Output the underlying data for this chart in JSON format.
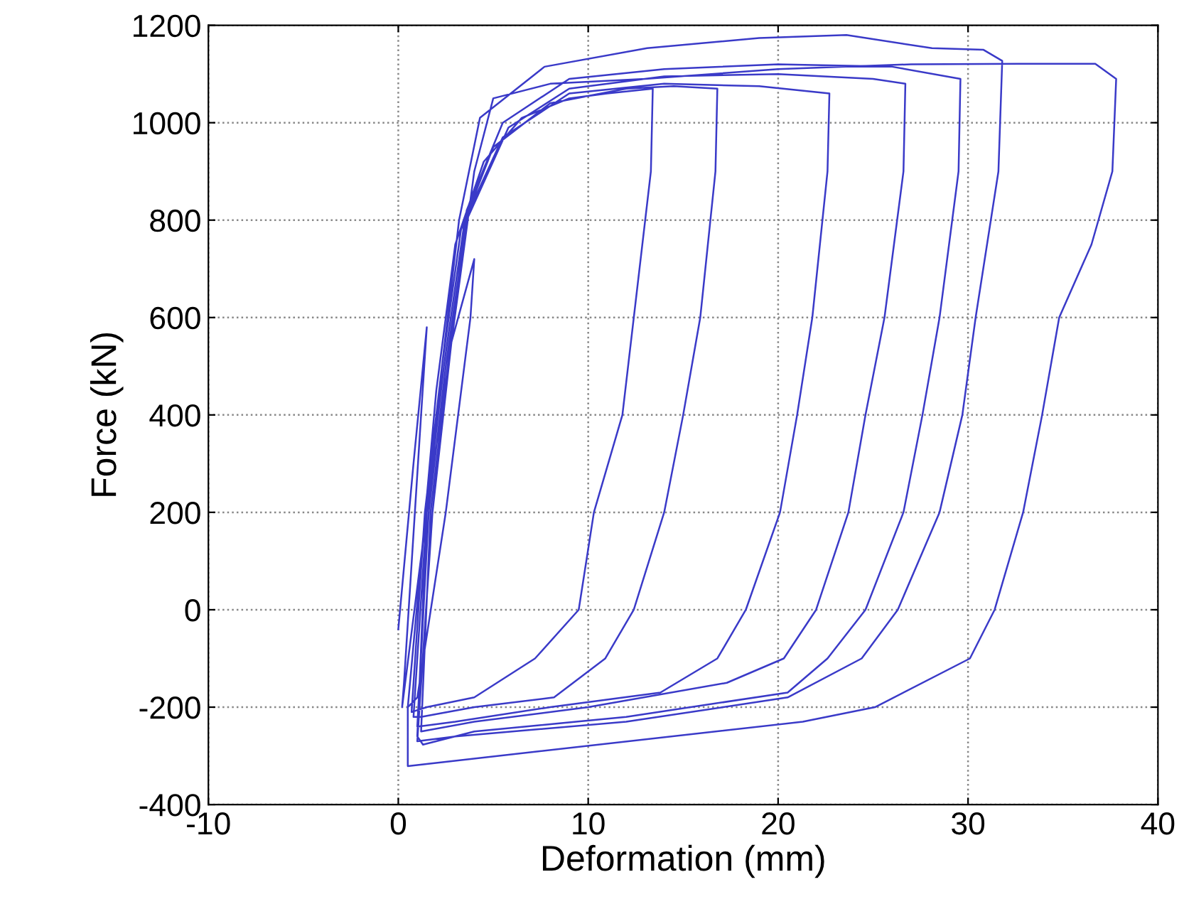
{
  "chart_data": {
    "type": "line",
    "xlabel": "Deformation (mm)",
    "ylabel": "Force (kN)",
    "xlim": [
      -10,
      40
    ],
    "xticks": [
      -10,
      0,
      10,
      20,
      30,
      40
    ],
    "ylim": [
      -400,
      1200
    ],
    "yticks": [
      -400,
      -200,
      0,
      200,
      400,
      600,
      800,
      1000,
      1200
    ],
    "grid": true,
    "line_style": "dotted",
    "marker": "none",
    "series": [
      {
        "color": "#3a3ac8",
        "line_style": "solid",
        "x": [
          0,
          0.8,
          1.5,
          1.2,
          0.3,
          0.2,
          1.5,
          2.8,
          4,
          3.8,
          2.5,
          1,
          0.5,
          1.2,
          2,
          3,
          4.5,
          6.5,
          9,
          11,
          13.4,
          13.3,
          12.4,
          11.8,
          10.3,
          9.5,
          7.2,
          4,
          1.5,
          0.7,
          1.4,
          2.3,
          3.3,
          5,
          8,
          12,
          14.5,
          16.8,
          16.7,
          15.9,
          15,
          14,
          12.4,
          10.9,
          8.2,
          4,
          1.2,
          0.8,
          1.5,
          2.4,
          3.5,
          5.5,
          9,
          14,
          19,
          22.7,
          22.6,
          21.8,
          21,
          20.1,
          18.3,
          16.8,
          13.8,
          8,
          3,
          1,
          1.6,
          2.5,
          3.6,
          5.8,
          9,
          14,
          20,
          25,
          26.7,
          26.6,
          25.6,
          24.6,
          23.7,
          22,
          20.3,
          17.3,
          10,
          4,
          1.2,
          1.7,
          2.6,
          3.6,
          5.5,
          9,
          14,
          20,
          26,
          29.6,
          29.5,
          28.5,
          27.6,
          26.6,
          24.6,
          22.6,
          20.5,
          12,
          4,
          1.3,
          1,
          1.5,
          2.3,
          3.2,
          4.3,
          7.7,
          13.1,
          19,
          23.6,
          28.1,
          30.8,
          31.8,
          31.6,
          30.4,
          29.7,
          28.5,
          26.3,
          24.4,
          20.5,
          12,
          3,
          1,
          1.8,
          2.8,
          4,
          5,
          8,
          13,
          20,
          27,
          32.7,
          36.7,
          37.8,
          37.6,
          36.5,
          34.8,
          33.9,
          32.9,
          31.4,
          30.1,
          25.1,
          21.3,
          0.5,
          0.5
        ],
        "values": [
          -40,
          300,
          580,
          400,
          -150,
          -200,
          200,
          550,
          720,
          600,
          200,
          -180,
          -200,
          100,
          450,
          750,
          920,
          1010,
          1050,
          1060,
          1070,
          900,
          600,
          400,
          200,
          0,
          -100,
          -180,
          -200,
          -210,
          200,
          500,
          780,
          950,
          1040,
          1070,
          1075,
          1070,
          900,
          600,
          400,
          200,
          0,
          -100,
          -180,
          -200,
          -220,
          -220,
          200,
          500,
          800,
          970,
          1060,
          1080,
          1075,
          1060,
          900,
          600,
          400,
          200,
          0,
          -100,
          -170,
          -200,
          -230,
          -240,
          200,
          500,
          800,
          990,
          1070,
          1095,
          1100,
          1090,
          1080,
          900,
          600,
          400,
          200,
          0,
          -100,
          -150,
          -200,
          -230,
          -250,
          200,
          500,
          820,
          1000,
          1090,
          1110,
          1120,
          1115,
          1090,
          900,
          600,
          400,
          200,
          0,
          -100,
          -170,
          -220,
          -250,
          -277,
          -260,
          200,
          500,
          800,
          1010,
          1115,
          1153,
          1174,
          1180,
          1153,
          1150,
          1127,
          900,
          600,
          400,
          200,
          0,
          -100,
          -180,
          -230,
          -260,
          -270,
          200,
          550,
          900,
          1050,
          1080,
          1090,
          1110,
          1120,
          1121,
          1121,
          1090,
          900,
          750,
          600,
          400,
          200,
          0,
          -100,
          -200,
          -230,
          -321,
          -200
        ]
      }
    ]
  }
}
